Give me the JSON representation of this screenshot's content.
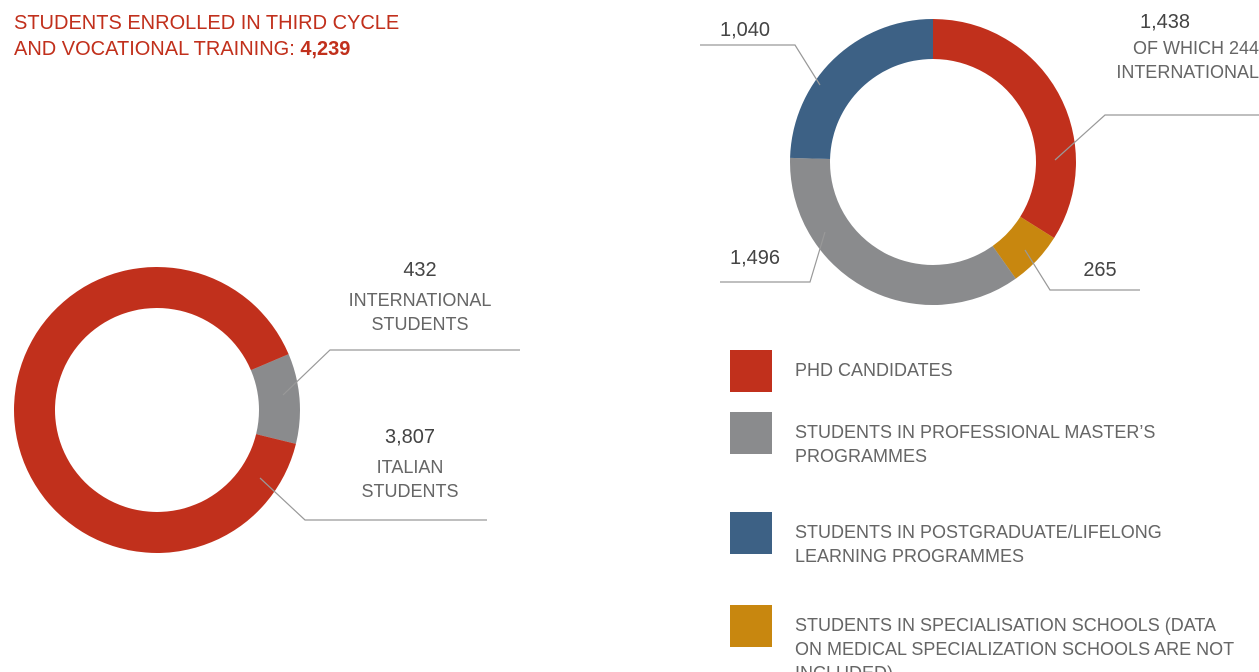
{
  "chart_data": [
    {
      "type": "pie",
      "donut": true,
      "title": "STUDENTS ENROLLED IN THIRD CYCLE AND VOCATIONAL TRAINING:",
      "total": 4239,
      "total_label": "4,239",
      "categories": [
        "INTERNATIONAL STUDENTS",
        "ITALIAN STUDENTS"
      ],
      "values": [
        432,
        3807
      ],
      "value_labels": [
        "432",
        "3,807"
      ],
      "colors": [
        "#8a8b8d",
        "#c1301c"
      ]
    },
    {
      "type": "pie",
      "donut": true,
      "legend": true,
      "categories": [
        "PHD CANDIDATES",
        "STUDENTS IN SPECIALISATION SCHOOLS (DATA ON MEDICAL SPECIALIZATION SCHOOLS  ARE NOT INCLUDED)",
        "STUDENTS IN PROFESSIONAL MASTER’S PROGRAMMES",
        "STUDENTS IN POSTGRADUATE/LIFELONG LEARNING PROGRAMMES"
      ],
      "values": [
        1438,
        265,
        1496,
        1040
      ],
      "value_labels": [
        "1,438",
        "265",
        "1,496",
        "1,040"
      ],
      "colors": [
        "#c1301c",
        "#c8870f",
        "#8a8b8d",
        "#3d6185"
      ],
      "annotation": "OF WHICH 244 INTERNATIONAL"
    }
  ]
}
